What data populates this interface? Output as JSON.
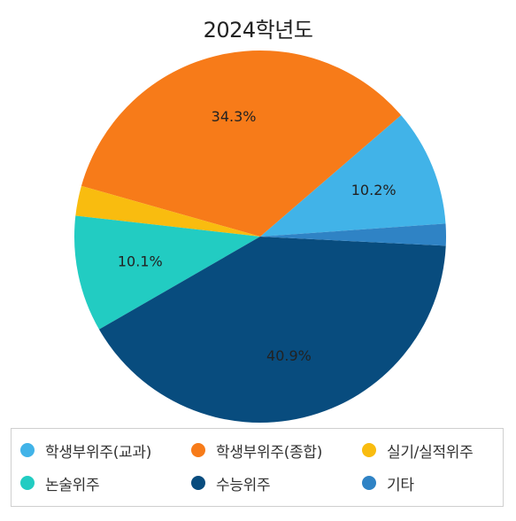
{
  "chart_data": {
    "type": "pie",
    "title": "2024학년도",
    "slices": [
      {
        "name": "학생부위주(교과)",
        "value": 10.2,
        "label": "10.2%",
        "color": "#41b3e8"
      },
      {
        "name": "학생부위주(종합)",
        "value": 34.3,
        "label": "34.3%",
        "color": "#f77b19"
      },
      {
        "name": "실기/실적위주",
        "value": 2.6,
        "label": "",
        "color": "#f9bc0f"
      },
      {
        "name": "논술위주",
        "value": 10.1,
        "label": "10.1%",
        "color": "#22ccc2"
      },
      {
        "name": "수능위주",
        "value": 40.9,
        "label": "40.9%",
        "color": "#084c7e"
      },
      {
        "name": "기타",
        "value": 1.9,
        "label": "",
        "color": "#2f83c5"
      }
    ],
    "legend_position": "bottom"
  }
}
